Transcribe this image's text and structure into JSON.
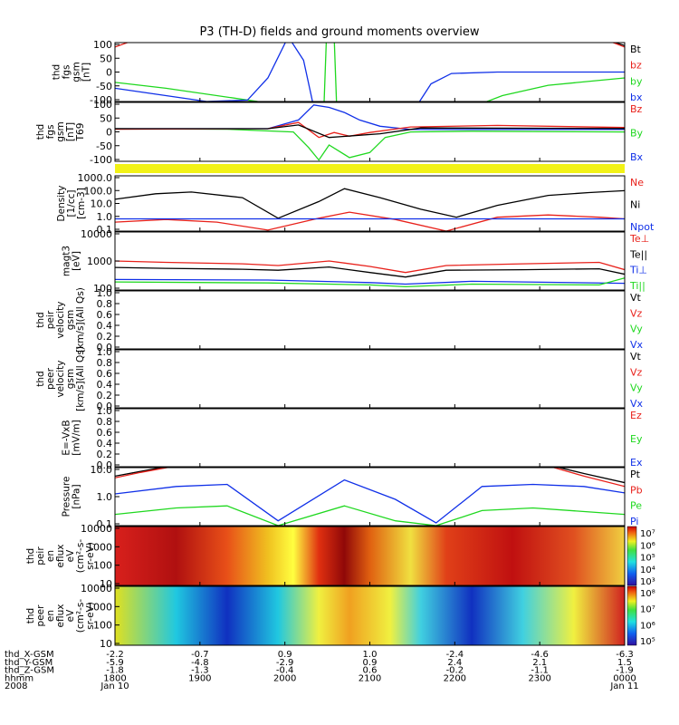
{
  "title": "P3 (TH-D) fields and ground moments overview",
  "colors": {
    "black": "#000000",
    "red": "#e8211b",
    "green": "#1fd81f",
    "blue": "#1030e8",
    "yellow": "#f2f216"
  },
  "chart_data": [
    {
      "id": "fgs",
      "type": "line",
      "ylabel": [
        "thd",
        "fgs",
        "gsm",
        "[nT]"
      ],
      "ylim": [
        -100,
        100
      ],
      "yticks": [
        "100",
        "50",
        "0",
        "-50",
        "-100"
      ],
      "legend": [
        {
          "name": "Bt",
          "color": "black"
        },
        {
          "name": "bz",
          "color": "red"
        },
        {
          "name": "by",
          "color": "green"
        },
        {
          "name": "bx",
          "color": "blue"
        }
      ]
    },
    {
      "id": "fgs2",
      "type": "line",
      "ylabel": [
        "thd",
        "fgs",
        "gsm",
        "[nT]",
        "T69"
      ],
      "ylim": [
        -125,
        110
      ],
      "yticks": [
        "100",
        "50",
        "0",
        "-50",
        "-100"
      ],
      "legend": [
        {
          "name": "Bz",
          "color": "red"
        },
        {
          "name": "By",
          "color": "green"
        },
        {
          "name": "Bx",
          "color": "blue"
        }
      ]
    },
    {
      "id": "density",
      "type": "line",
      "ylabel": [
        "Density",
        "[1/cc]",
        "[cm-3]"
      ],
      "log": true,
      "ylim": [
        0.1,
        2000
      ],
      "yticks": [
        "1000.0",
        "100.0",
        "10.0",
        "1.0",
        "0.1"
      ],
      "legend": [
        {
          "name": "Ne",
          "color": "red"
        },
        {
          "name": "Ni",
          "color": "black"
        },
        {
          "name": "Npot",
          "color": "blue"
        }
      ]
    },
    {
      "id": "temp",
      "type": "line",
      "ylabel": [
        "magt3",
        "[eV]"
      ],
      "log": true,
      "ylim": [
        100,
        10000
      ],
      "yticks": [
        "10000",
        "1000",
        "100"
      ],
      "legend": [
        {
          "name": "Te⊥",
          "color": "red"
        },
        {
          "name": "Te||",
          "color": "black"
        },
        {
          "name": "Ti⊥",
          "color": "blue"
        },
        {
          "name": "Ti||",
          "color": "green"
        }
      ]
    },
    {
      "id": "peir",
      "type": "line",
      "ylabel": [
        "thd",
        "peir",
        "velocity",
        "gsm",
        "[km/s](All Qs)"
      ],
      "ylim": [
        0,
        1
      ],
      "yticks": [
        "1.0",
        "0.8",
        "0.6",
        "0.4",
        "0.2",
        "0.0"
      ],
      "legend": [
        {
          "name": "Vt",
          "color": "black"
        },
        {
          "name": "Vz",
          "color": "red"
        },
        {
          "name": "Vy",
          "color": "green"
        },
        {
          "name": "Vx",
          "color": "blue"
        }
      ]
    },
    {
      "id": "peer",
      "type": "line",
      "ylabel": [
        "thd",
        "peer",
        "velocity",
        "gsm",
        "[km/s](All Qs)"
      ],
      "ylim": [
        0,
        1
      ],
      "yticks": [
        "1.0",
        "0.8",
        "0.6",
        "0.4",
        "0.2",
        "0.0"
      ],
      "legend": [
        {
          "name": "Vt",
          "color": "black"
        },
        {
          "name": "Vz",
          "color": "red"
        },
        {
          "name": "Vy",
          "color": "green"
        },
        {
          "name": "Vx",
          "color": "blue"
        }
      ]
    },
    {
      "id": "efield",
      "type": "line",
      "ylabel": [
        "E=-VxB",
        "[mV/m]"
      ],
      "ylim": [
        0,
        1
      ],
      "yticks": [
        "1.0",
        "0.8",
        "0.6",
        "0.4",
        "0.2",
        "0.0"
      ],
      "legend": [
        {
          "name": "Ez",
          "color": "red"
        },
        {
          "name": "Ey",
          "color": "green"
        },
        {
          "name": "Ex",
          "color": "blue"
        }
      ]
    },
    {
      "id": "pressure",
      "type": "line",
      "ylabel": [
        "Pressure",
        "[nPa]"
      ],
      "log": true,
      "ylim": [
        0.03,
        15
      ],
      "yticks": [
        "10.0",
        "1.0",
        "0.1"
      ],
      "legend": [
        {
          "name": "Pt",
          "color": "black"
        },
        {
          "name": "Pb",
          "color": "red"
        },
        {
          "name": "Pe",
          "color": "green"
        },
        {
          "name": "Pi",
          "color": "blue"
        }
      ]
    },
    {
      "id": "ion_spec",
      "type": "heatmap",
      "ylabel": [
        "thd",
        "peir",
        "en",
        "eflux",
        "eV",
        "(cm²-s-",
        "sr-eV)"
      ],
      "log": true,
      "ylim": [
        5,
        30000
      ],
      "yticks": [
        "10000",
        "1000",
        "100",
        "10"
      ],
      "colorbar": [
        "10⁷",
        "10⁶",
        "10⁵",
        "10⁴",
        "10³"
      ]
    },
    {
      "id": "elec_spec",
      "type": "heatmap",
      "ylabel": [
        "thd",
        "peer",
        "en",
        "eflux",
        "eV",
        "(cm²-s-",
        "sr-eV)"
      ],
      "log": true,
      "ylim": [
        5,
        30000
      ],
      "yticks": [
        "10000",
        "1000",
        "100",
        "10"
      ],
      "colorbar": [
        "10⁸",
        "10⁷",
        "10⁶",
        "10⁵"
      ]
    }
  ],
  "x_axis": {
    "row_labels": [
      "thd_X-GSM",
      "thd_Y-GSM",
      "thd_Z-GSM",
      "hhmm",
      "2008"
    ],
    "ticks": [
      {
        "x": "-2.2",
        "y": "-5.9",
        "z": "-1.8",
        "hhmm": "1800",
        "date": "Jan 10"
      },
      {
        "x": "-0.7",
        "y": "-4.8",
        "z": "-1.3",
        "hhmm": "1900",
        "date": ""
      },
      {
        "x": "0.9",
        "y": "-2.9",
        "z": "-0.4",
        "hhmm": "2000",
        "date": ""
      },
      {
        "x": "1.0",
        "y": "0.9",
        "z": "0.6",
        "hhmm": "2100",
        "date": ""
      },
      {
        "x": "-2.4",
        "y": "2.4",
        "z": "-0.2",
        "hhmm": "2200",
        "date": ""
      },
      {
        "x": "-4.6",
        "y": "2.1",
        "z": "-1.1",
        "hhmm": "2300",
        "date": ""
      },
      {
        "x": "-6.3",
        "y": "1.5",
        "z": "-1.9",
        "hhmm": "0000",
        "date": "Jan 11"
      }
    ]
  }
}
